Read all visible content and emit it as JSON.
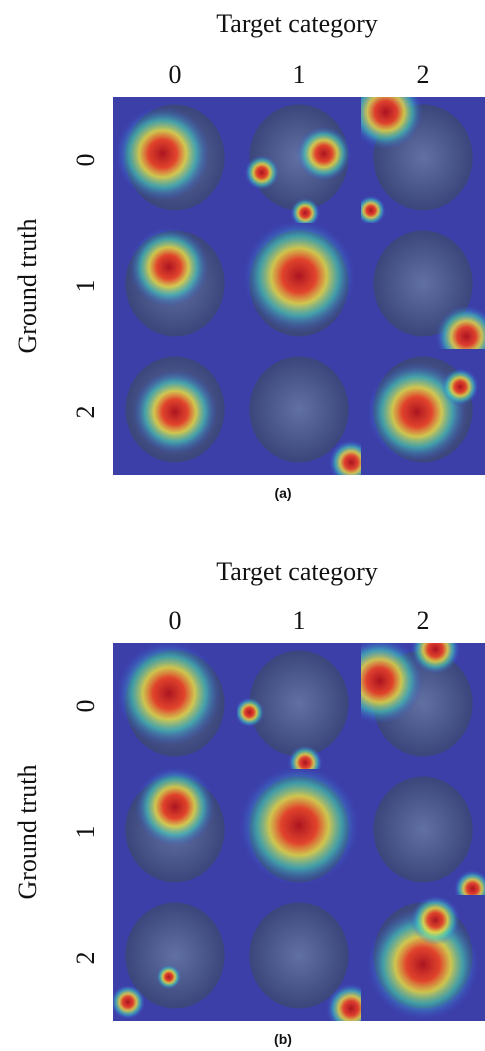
{
  "panels": [
    {
      "title": "Target category",
      "column_labels": [
        "0",
        "1",
        "2"
      ],
      "row_labels": [
        "0",
        "1",
        "2"
      ],
      "y_label": "Ground truth",
      "caption": "(a)"
    },
    {
      "title": "Target category",
      "column_labels": [
        "0",
        "1",
        "2"
      ],
      "row_labels": [
        "0",
        "1",
        "2"
      ],
      "y_label": "Ground truth",
      "caption": "(b)"
    }
  ]
}
